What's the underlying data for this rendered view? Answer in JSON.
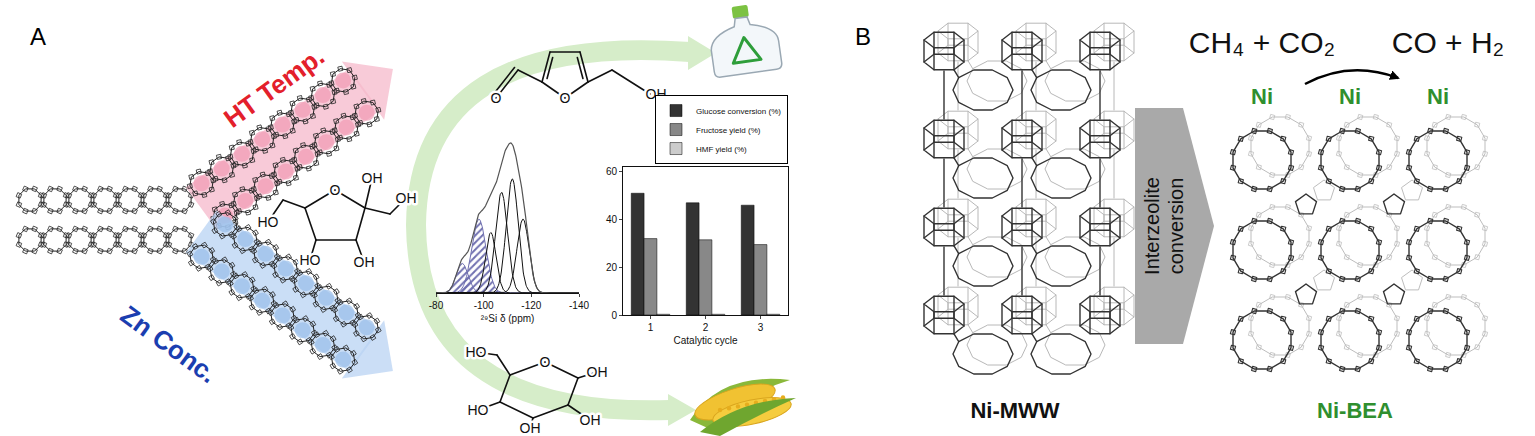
{
  "panels": [
    {
      "label": "A",
      "arrows": {
        "upper": "HT Temp.",
        "lower": "Zn Conc."
      },
      "molecules": {
        "hmf": [
          "O",
          "O",
          "OH"
        ],
        "fructose": [
          "O",
          "OH",
          "OH",
          "HO",
          "HO",
          "OH"
        ],
        "glucose": [
          "HO",
          "O",
          "OH",
          "HO",
          "OH",
          "OH"
        ]
      }
    },
    {
      "label": "B",
      "reaction": {
        "reactants": "CH₄ + CO₂",
        "products": "CO + H₂"
      },
      "conversion": [
        "Interzeolite",
        "conversion"
      ],
      "source": "Ni-MWW",
      "product": "Ni-BEA",
      "sites": [
        "Ni",
        "Ni",
        "Ni"
      ]
    }
  ],
  "chart_data": [
    {
      "type": "line",
      "xlabel": "²⁹Si δ (ppm)",
      "xlim": [
        -80,
        -140
      ],
      "xticks": [
        -80,
        -100,
        -120,
        -140
      ],
      "ylim": [
        0,
        1.4
      ],
      "tick_labels": "x",
      "components": [
        {
          "center": -91,
          "height": 0.22,
          "sigma": 2.5,
          "color": "#7070b0"
        },
        {
          "center": -98,
          "height": 0.55,
          "sigma": 3,
          "color": "#7070b0"
        },
        {
          "center": -103,
          "height": 0.45,
          "sigma": 2.2
        },
        {
          "center": -107.5,
          "height": 0.75,
          "sigma": 2.5
        },
        {
          "center": -112,
          "height": 0.85,
          "sigma": 2.5
        },
        {
          "center": -116.5,
          "height": 0.55,
          "sigma": 2.5
        }
      ]
    },
    {
      "type": "bar",
      "xlabel": "Catalytic cycle",
      "categories": [
        "1",
        "2",
        "3"
      ],
      "series": [
        {
          "name": "Glucose conversion (%)",
          "color": "#333333",
          "values": [
            51,
            47,
            46
          ]
        },
        {
          "name": "Fructose yield (%)",
          "color": "#888888",
          "values": [
            32,
            31.5,
            29.5
          ]
        },
        {
          "name": "HMF yield (%)",
          "color": "#cccccc",
          "values": [
            0.3,
            0.3,
            0.3
          ]
        }
      ],
      "ylim": [
        0,
        62
      ],
      "yticks": [
        0,
        20,
        40,
        60
      ],
      "legend": "upper right"
    }
  ]
}
